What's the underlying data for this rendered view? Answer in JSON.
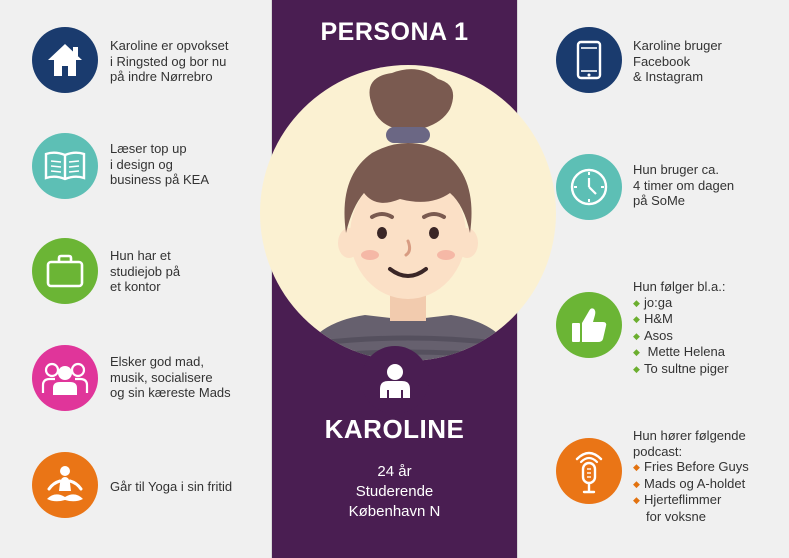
{
  "persona": {
    "title": "PERSONA 1",
    "name": "KAROLINE",
    "age": "24 år",
    "occupation": "Studerende",
    "city": "København N"
  },
  "left_items": [
    {
      "icon": "house-icon",
      "color": "#1a3b6e",
      "lines": [
        "Karoline er opvokset",
        "i Ringsted og bor nu",
        "på indre Nørrebro"
      ]
    },
    {
      "icon": "open-book-icon",
      "color": "#5dbfb5",
      "lines": [
        "Læser top up",
        "i design og",
        "business på KEA"
      ]
    },
    {
      "icon": "briefcase-icon",
      "color": "#6bb535",
      "lines": [
        "Hun har et",
        "studiejob på",
        "et kontor"
      ]
    },
    {
      "icon": "group-icon",
      "color": "#e0359a",
      "lines": [
        "Elsker god mad,",
        "musik, socialisere",
        "og sin kæreste Mads"
      ]
    },
    {
      "icon": "yoga-icon",
      "color": "#ea7516",
      "lines": [
        "Går til Yoga i sin fritid"
      ]
    }
  ],
  "right_items": [
    {
      "icon": "smartphone-icon",
      "color": "#1a3b6e",
      "lines": [
        "Karoline bruger",
        "Facebook",
        "& Instagram"
      ]
    },
    {
      "icon": "clock-icon",
      "color": "#5dbfb5",
      "lines": [
        "Hun bruger ca.",
        "4 timer om dagen",
        "på SoMe"
      ]
    },
    {
      "icon": "thumbs-up-icon",
      "color": "#6bb535",
      "heading": "Hun følger bl.a.:",
      "bullets": [
        "jo:ga",
        "H&M",
        "Asos",
        " Mette Helena",
        "To sultne piger"
      ],
      "bullet_color": "#6bae2e"
    },
    {
      "icon": "microphone-icon",
      "color": "#ea7516",
      "heading": "Hun hører følgende",
      "heading2": "podcast:",
      "bullets": [
        "Fries Before Guys",
        "Mads og A-holdet",
        "Hjerteflimmer"
      ],
      "continuation": "for voksne",
      "bullet_color": "#e2720f"
    }
  ],
  "colors": {
    "center_bg": "#4a1e52",
    "side_bg": "#f0f0f0",
    "portrait_bg": "#fbf1d2",
    "hair": "#7a5a50",
    "skin": "#fbe0c6",
    "shirt": "#66606e"
  }
}
